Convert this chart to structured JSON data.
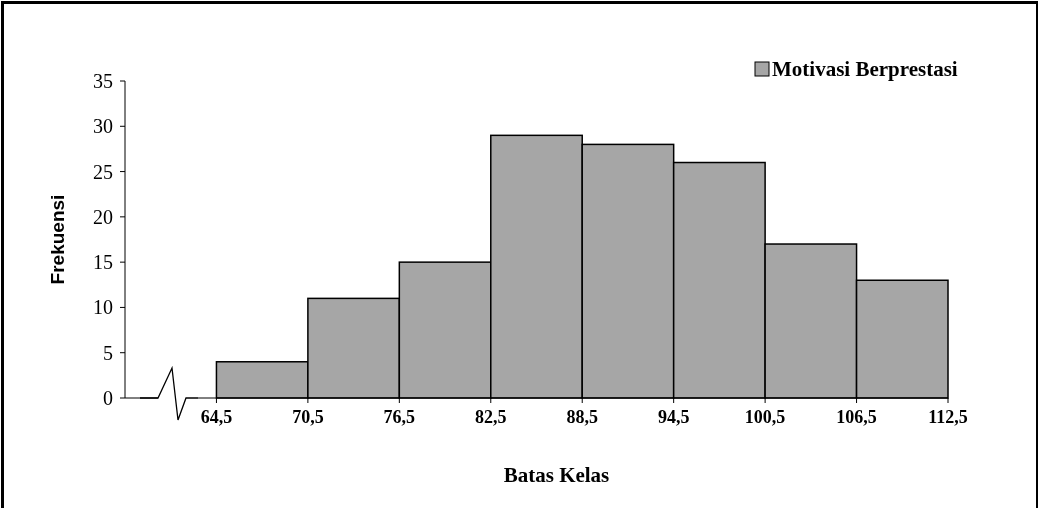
{
  "chart_data": {
    "type": "histogram",
    "xlabel": "Batas Kelas",
    "ylabel": "Frekuensi",
    "bins": [
      64.5,
      70.5,
      76.5,
      82.5,
      88.5,
      94.5,
      100.5,
      106.5,
      112.5
    ],
    "series": [
      {
        "name": "Motivasi Berprestasi",
        "color": "#a6a6a6",
        "values": [
          4,
          11,
          15,
          29,
          28,
          26,
          17,
          13
        ]
      }
    ],
    "xlim": [
      58.5,
      112.5
    ],
    "xticks": [
      {
        "value": 64.5,
        "label": "64,5"
      },
      {
        "value": 70.5,
        "label": "70,5"
      },
      {
        "value": 76.5,
        "label": "76,5"
      },
      {
        "value": 82.5,
        "label": "82,5"
      },
      {
        "value": 88.5,
        "label": "88,5"
      },
      {
        "value": 94.5,
        "label": "94,5"
      },
      {
        "value": 100.5,
        "label": "100,5"
      },
      {
        "value": 106.5,
        "label": "106,5"
      },
      {
        "value": 112.5,
        "label": "112,5"
      }
    ],
    "ylim": [
      0,
      35
    ],
    "yticks": [
      0,
      5,
      10,
      15,
      20,
      25,
      30,
      35
    ],
    "legend": "top right",
    "grid": false
  }
}
